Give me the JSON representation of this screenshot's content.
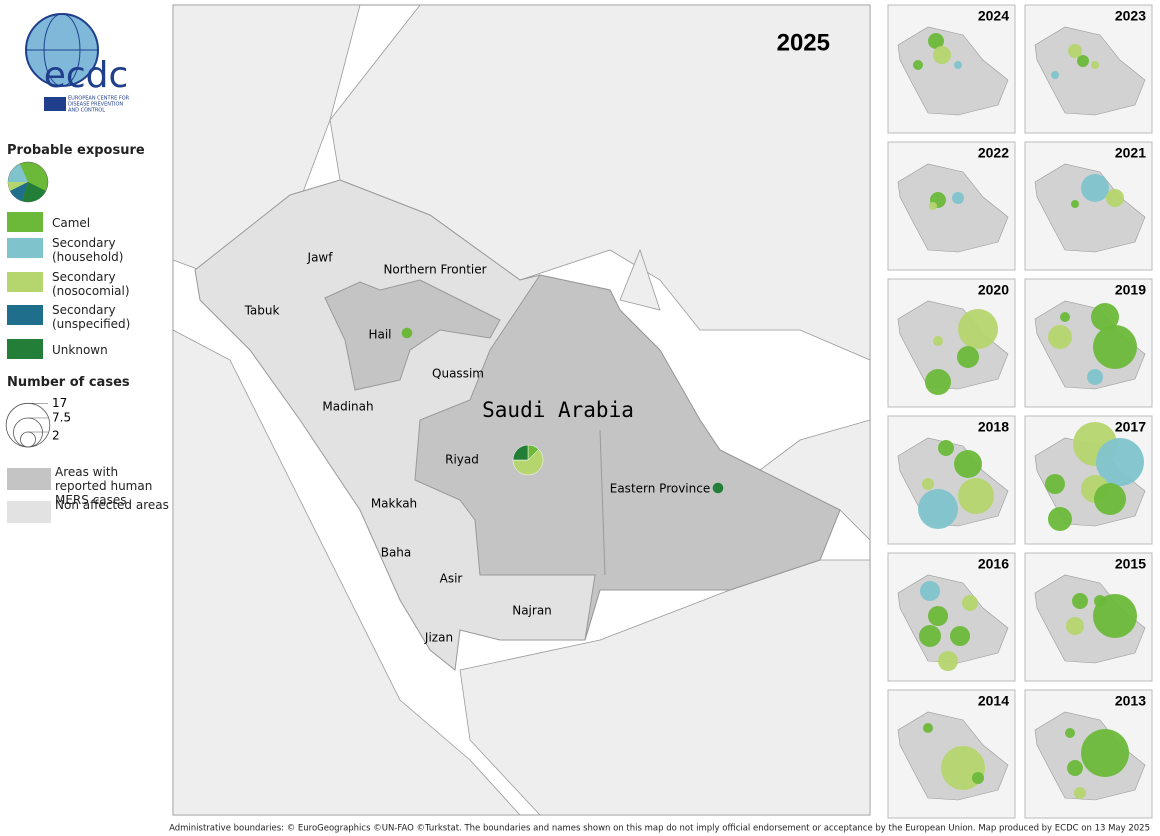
{
  "logo": {
    "name": "ecdc",
    "subtitle": [
      "EUROPEAN CENTRE FOR",
      "DISEASE PREVENTION",
      "AND CONTROL"
    ]
  },
  "legend": {
    "exposure_title": "Probable exposure",
    "exposure": [
      {
        "label": "Camel",
        "color": "#6cb93a"
      },
      {
        "label": "Secondary (household)",
        "color": "#7fc4cc"
      },
      {
        "label": "Secondary (nosocomial)",
        "color": "#b5d56e"
      },
      {
        "label": "Secondary (unspecified)",
        "color": "#1f6e8c"
      },
      {
        "label": "Unknown",
        "color": "#237e37"
      }
    ],
    "size_title": "Number of cases",
    "size_values": [
      17,
      7.5,
      2
    ],
    "areas": [
      {
        "label": "Areas with reported human MERS cases",
        "color": "#c4c4c4"
      },
      {
        "label": "Non affected areas",
        "color": "#e2e2e2"
      }
    ]
  },
  "map": {
    "year": "2025",
    "country": "Saudi Arabia",
    "regions": [
      {
        "name": "Jawf"
      },
      {
        "name": "Northern Frontier"
      },
      {
        "name": "Tabuk"
      },
      {
        "name": "Hail",
        "cases": [
          1,
          0,
          0,
          0,
          0
        ]
      },
      {
        "name": "Quassim"
      },
      {
        "name": "Madinah"
      },
      {
        "name": "Riyad",
        "cases": [
          1,
          0,
          5,
          0,
          2
        ]
      },
      {
        "name": "Eastern Province",
        "cases": [
          0,
          0,
          0,
          0,
          1
        ]
      },
      {
        "name": "Makkah"
      },
      {
        "name": "Baha"
      },
      {
        "name": "Asir"
      },
      {
        "name": "Najran"
      },
      {
        "name": "Jizan"
      }
    ]
  },
  "thumbnails": [
    "2024",
    "2023",
    "2022",
    "2021",
    "2020",
    "2019",
    "2018",
    "2017",
    "2016",
    "2015",
    "2014",
    "2013"
  ],
  "footer": "Administrative boundaries: © EuroGeographics ©UN-FAO ©Turkstat. The boundaries and names shown on this map do not imply official endorsement or acceptance by the European Union. Map produced by ECDC on 13 May 2025"
}
